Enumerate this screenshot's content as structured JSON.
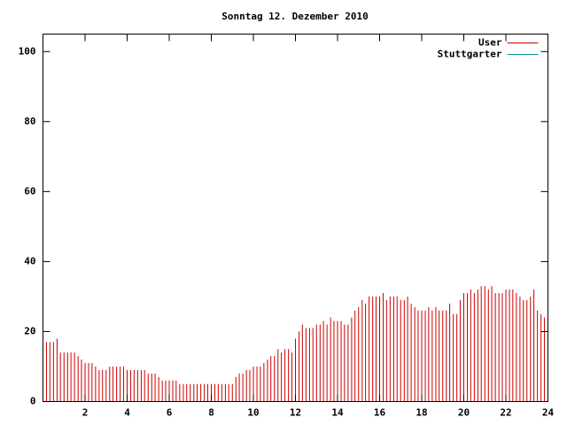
{
  "chart_data": {
    "type": "impulses",
    "title": "Sonntag 12. Dezember 2010",
    "x": [
      0,
      0.17,
      0.33,
      0.5,
      0.67,
      0.83,
      1,
      1.17,
      1.33,
      1.5,
      1.67,
      1.83,
      2,
      2.17,
      2.33,
      2.5,
      2.67,
      2.83,
      3,
      3.17,
      3.33,
      3.5,
      3.67,
      3.83,
      4,
      4.17,
      4.33,
      4.5,
      4.67,
      4.83,
      5,
      5.17,
      5.33,
      5.5,
      5.67,
      5.83,
      6,
      6.17,
      6.33,
      6.5,
      6.67,
      6.83,
      7,
      7.17,
      7.33,
      7.5,
      7.67,
      7.83,
      8,
      8.17,
      8.33,
      8.5,
      8.67,
      8.83,
      9,
      9.17,
      9.33,
      9.5,
      9.67,
      9.83,
      10,
      10.17,
      10.33,
      10.5,
      10.67,
      10.83,
      11,
      11.17,
      11.33,
      11.5,
      11.67,
      11.83,
      12,
      12.17,
      12.33,
      12.5,
      12.67,
      12.83,
      13,
      13.17,
      13.33,
      13.5,
      13.67,
      13.83,
      14,
      14.17,
      14.33,
      14.5,
      14.67,
      14.83,
      15,
      15.17,
      15.33,
      15.5,
      15.67,
      15.83,
      16,
      16.17,
      16.33,
      16.5,
      16.67,
      16.83,
      17,
      17.17,
      17.33,
      17.5,
      17.67,
      17.83,
      18,
      18.17,
      18.33,
      18.5,
      18.67,
      18.83,
      19,
      19.17,
      19.33,
      19.5,
      19.67,
      19.83,
      20,
      20.17,
      20.33,
      20.5,
      20.67,
      20.83,
      21,
      21.17,
      21.33,
      21.5,
      21.67,
      21.83,
      22,
      22.17,
      22.33,
      22.5,
      22.67,
      22.83,
      23,
      23.17,
      23.33,
      23.5,
      23.67,
      23.83
    ],
    "series": [
      {
        "name": "User",
        "color": "#cc0000",
        "values": [
          18,
          17,
          17,
          17,
          18,
          14,
          14,
          14,
          14,
          14,
          13,
          12,
          11,
          11,
          11,
          10,
          9,
          9,
          9,
          10,
          10,
          10,
          10,
          10,
          9,
          9,
          9,
          9,
          9,
          9,
          8,
          8,
          8,
          7,
          6,
          6,
          6,
          6,
          6,
          5,
          5,
          5,
          5,
          5,
          5,
          5,
          5,
          5,
          5,
          5,
          5,
          5,
          5,
          5,
          5,
          7,
          8,
          8,
          9,
          9,
          10,
          10,
          10,
          11,
          12,
          13,
          13,
          15,
          14,
          15,
          15,
          14,
          18,
          20,
          22,
          21,
          21,
          21,
          22,
          22,
          23,
          22,
          24,
          23,
          23,
          23,
          22,
          22,
          24,
          26,
          27,
          29,
          28,
          30,
          30,
          30,
          30,
          31,
          29,
          30,
          30,
          30,
          29,
          29,
          30,
          28,
          27,
          26,
          26,
          26,
          27,
          26,
          27,
          26,
          26,
          26,
          28,
          25,
          25,
          29,
          31,
          31,
          32,
          31,
          32,
          33,
          33,
          32,
          33,
          31,
          31,
          31,
          32,
          32,
          32,
          31,
          30,
          29,
          29,
          30,
          32,
          26,
          25,
          24
        ]
      },
      {
        "name": "Stuttgarter",
        "color": "#009595",
        "values": [
          null,
          null,
          null,
          null,
          null,
          null,
          null,
          null,
          null,
          null,
          null,
          null,
          null,
          null,
          null,
          null,
          null,
          null,
          null,
          null,
          null,
          null,
          null,
          null,
          null,
          null,
          null,
          null,
          null,
          null,
          null,
          null,
          null,
          null,
          null,
          null,
          null,
          null,
          null,
          null,
          null,
          null,
          null,
          null,
          null,
          null,
          null,
          null,
          null,
          null,
          null,
          null,
          null,
          null,
          null,
          null,
          null,
          null,
          null,
          null,
          null,
          null,
          null,
          null,
          null,
          null,
          null,
          null,
          null,
          null,
          null,
          null,
          null,
          null,
          null,
          null,
          null,
          null,
          null,
          null,
          null,
          null,
          null,
          null,
          null,
          null,
          null,
          null,
          null,
          null,
          null,
          null,
          null,
          null,
          null,
          null,
          null,
          null,
          null,
          null,
          null,
          null,
          null,
          null,
          null,
          null,
          null,
          null,
          null,
          null,
          null,
          null,
          null,
          null,
          null,
          null,
          null,
          null,
          null,
          null,
          null,
          null,
          null,
          null,
          null,
          null,
          null,
          null,
          null,
          null,
          null,
          null,
          null,
          null,
          null,
          null,
          null,
          null,
          null,
          null,
          null,
          null,
          null,
          null
        ]
      }
    ],
    "xlim": [
      0,
      24
    ],
    "xticks": [
      2,
      4,
      6,
      8,
      10,
      12,
      14,
      16,
      18,
      20,
      22,
      24
    ],
    "ylim": [
      0,
      105
    ],
    "yticks": [
      0,
      20,
      40,
      60,
      80,
      100
    ],
    "legend": "top-right"
  }
}
